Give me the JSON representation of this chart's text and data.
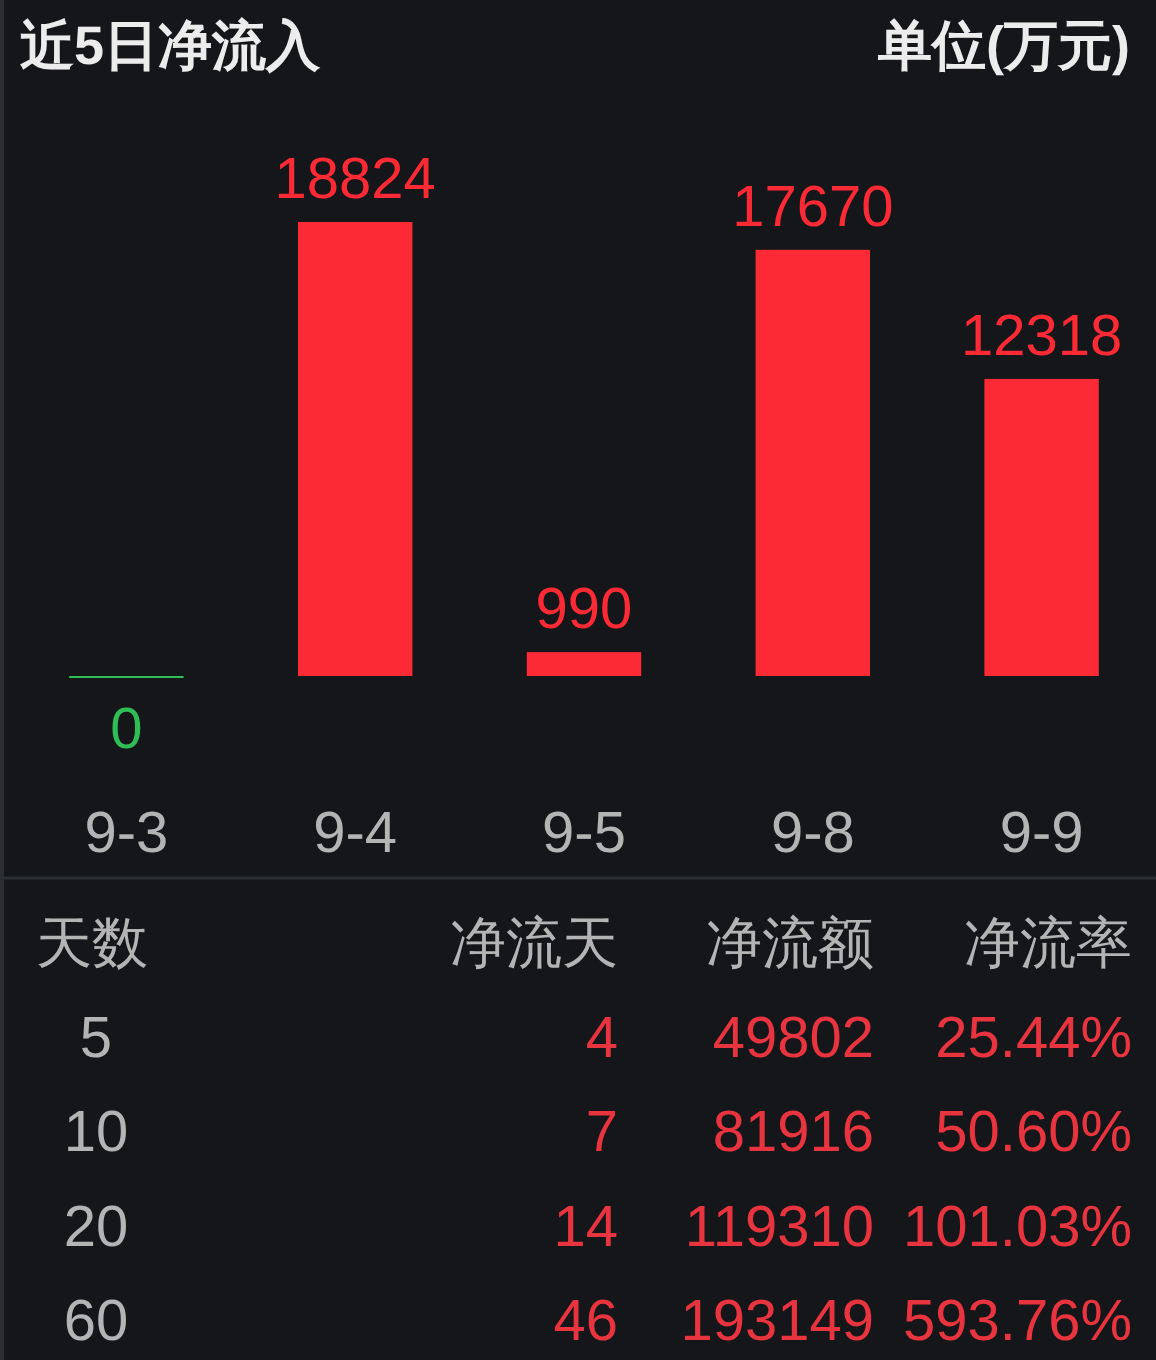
{
  "chart_data": [
    {
      "type": "bar",
      "title": "近5日净流入",
      "annotations": [
        "单位(万元)"
      ],
      "categories": [
        "9-3",
        "9-4",
        "9-5",
        "9-8",
        "9-9"
      ],
      "values": [
        0,
        18824,
        990,
        17670,
        12318
      ],
      "colors": [
        "#2fbd55",
        "#fc2a35",
        "#fc2a35",
        "#fc2a35",
        "#fc2a35"
      ],
      "data_labels": true
    },
    {
      "type": "other",
      "ylabel": "天数",
      "categories": [
        "5",
        "10",
        "20",
        "60"
      ],
      "data_labels": true,
      "series": [
        {
          "name": "净流天",
          "values": [
            4,
            7,
            14,
            46
          ]
        },
        {
          "name": "净流额",
          "values": [
            49802,
            81916,
            119310,
            193149
          ]
        },
        {
          "name": "净流率",
          "values": [
            25.44,
            50.6,
            101.03,
            593.76
          ],
          "value_labels": [
            "25.44%",
            "50.60%",
            "101.03%",
            "593.76%"
          ]
        }
      ]
    }
  ]
}
